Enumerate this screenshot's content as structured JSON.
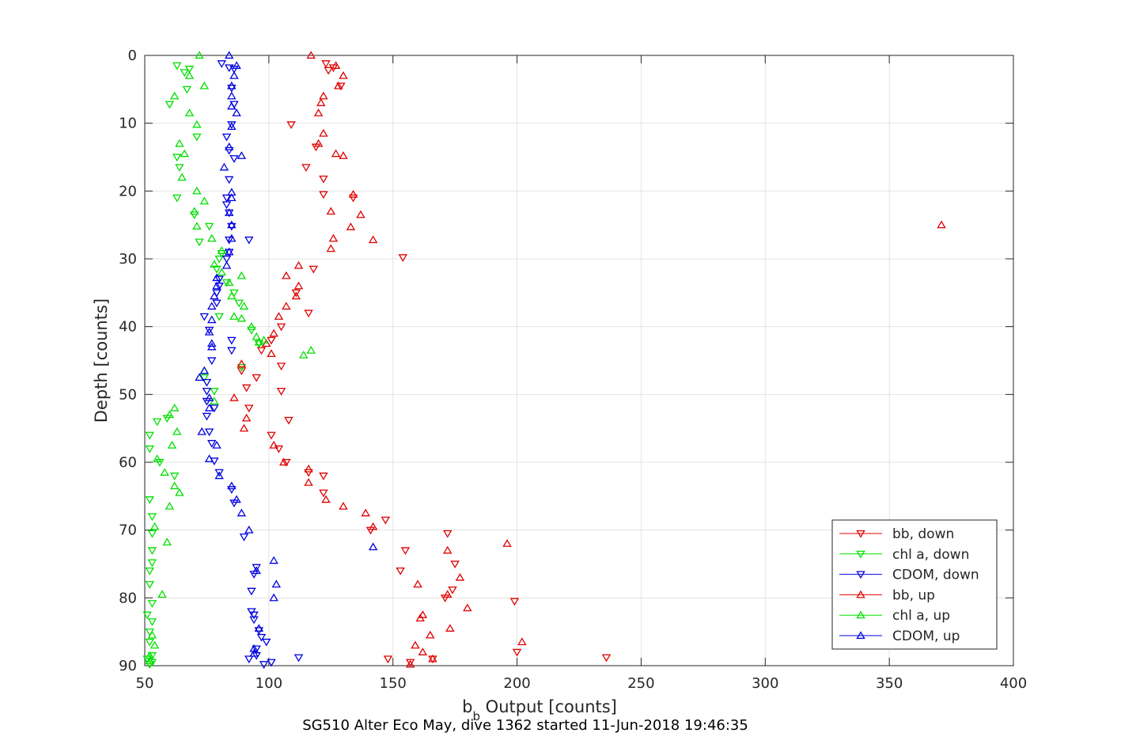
{
  "chart_data": {
    "type": "scatter",
    "xlabel_main": "b",
    "xlabel_sub": "b",
    "xlabel_rest": " Output [counts]",
    "ylabel": "Depth [counts]",
    "footer": "SG510 Alter Eco May, dive 1362 started 11-Jun-2018 19:46:35",
    "xlim": [
      50,
      400
    ],
    "ylim": [
      0,
      90
    ],
    "y_reversed": true,
    "grid": true,
    "legend_position": "bottom-right",
    "x_ticks": [
      50,
      100,
      150,
      200,
      250,
      300,
      350,
      400
    ],
    "y_ticks": [
      0,
      10,
      20,
      30,
      40,
      50,
      60,
      70,
      80,
      90
    ],
    "series": [
      {
        "name": "bb, down",
        "marker": "triangle-down",
        "color": "#e00000",
        "points": [
          [
            123,
            1.2
          ],
          [
            126,
            1.8
          ],
          [
            124,
            2.2
          ],
          [
            129,
            4.5
          ],
          [
            109,
            10.2
          ],
          [
            119,
            13.5
          ],
          [
            115,
            16.5
          ],
          [
            122,
            18.2
          ],
          [
            122,
            20.5
          ],
          [
            134,
            21
          ],
          [
            154,
            29.8
          ],
          [
            118,
            31.5
          ],
          [
            111,
            35
          ],
          [
            116,
            38
          ],
          [
            105,
            40
          ],
          [
            101,
            42
          ],
          [
            97,
            43.5
          ],
          [
            105,
            45.8
          ],
          [
            89,
            46.5
          ],
          [
            95,
            47.5
          ],
          [
            91,
            49
          ],
          [
            105,
            49.5
          ],
          [
            92,
            52
          ],
          [
            108,
            53.8
          ],
          [
            101,
            56
          ],
          [
            104,
            58
          ],
          [
            107,
            60
          ],
          [
            116,
            61.5
          ],
          [
            122,
            62
          ],
          [
            122,
            64.5
          ],
          [
            141,
            70
          ],
          [
            147,
            68.5
          ],
          [
            155,
            73
          ],
          [
            153,
            76
          ],
          [
            172,
            70.5
          ],
          [
            175,
            75
          ],
          [
            174,
            78.8
          ],
          [
            171,
            80
          ],
          [
            199,
            80.5
          ],
          [
            200,
            88
          ],
          [
            157,
            89.5
          ],
          [
            148,
            89
          ],
          [
            166,
            89
          ],
          [
            236,
            88.8
          ]
        ]
      },
      {
        "name": "chl a, down",
        "marker": "triangle-down",
        "color": "#00e000",
        "points": [
          [
            63,
            1.5
          ],
          [
            68,
            2
          ],
          [
            66,
            2.5
          ],
          [
            67,
            5
          ],
          [
            60,
            7.2
          ],
          [
            71,
            12
          ],
          [
            63,
            15
          ],
          [
            64,
            16.5
          ],
          [
            63,
            21
          ],
          [
            70,
            23.5
          ],
          [
            76,
            25.2
          ],
          [
            72,
            27.5
          ],
          [
            81,
            29.2
          ],
          [
            80,
            30
          ],
          [
            79,
            31.5
          ],
          [
            83,
            33.5
          ],
          [
            86,
            35
          ],
          [
            88,
            36.5
          ],
          [
            80,
            38.5
          ],
          [
            93,
            40.5
          ],
          [
            96,
            42.5
          ],
          [
            89,
            46
          ],
          [
            74,
            47.5
          ],
          [
            78,
            49.5
          ],
          [
            59,
            53.5
          ],
          [
            55,
            54
          ],
          [
            52,
            56
          ],
          [
            52,
            58
          ],
          [
            56,
            60
          ],
          [
            62,
            62
          ],
          [
            52,
            65.5
          ],
          [
            53,
            68
          ],
          [
            53,
            70.5
          ],
          [
            53,
            73
          ],
          [
            53,
            74.8
          ],
          [
            52,
            76
          ],
          [
            52,
            78
          ],
          [
            53,
            80.8
          ],
          [
            51,
            82.5
          ],
          [
            53,
            83.5
          ],
          [
            52,
            85
          ],
          [
            52,
            86.5
          ],
          [
            53,
            88.5
          ],
          [
            51,
            89
          ],
          [
            53,
            89.5
          ],
          [
            52,
            89.8
          ]
        ]
      },
      {
        "name": "CDOM, down",
        "marker": "triangle-down",
        "color": "#0000e0",
        "points": [
          [
            81,
            1.2
          ],
          [
            84,
            1.8
          ],
          [
            86,
            2
          ],
          [
            85,
            4.8
          ],
          [
            86,
            7.2
          ],
          [
            85,
            10.2
          ],
          [
            83,
            12
          ],
          [
            84,
            14
          ],
          [
            86,
            15.2
          ],
          [
            84,
            18.3
          ],
          [
            83,
            21
          ],
          [
            83,
            22
          ],
          [
            84,
            23.2
          ],
          [
            85,
            25.2
          ],
          [
            84,
            27.2
          ],
          [
            92,
            27.2
          ],
          [
            84,
            29
          ],
          [
            83,
            30
          ],
          [
            80,
            33
          ],
          [
            80,
            34
          ],
          [
            79,
            35
          ],
          [
            79,
            36.5
          ],
          [
            74,
            38.5
          ],
          [
            76,
            40.5
          ],
          [
            85,
            42
          ],
          [
            85,
            43.5
          ],
          [
            77,
            45
          ],
          [
            75,
            48.2
          ],
          [
            75,
            49.5
          ],
          [
            75,
            51
          ],
          [
            78,
            52
          ],
          [
            75,
            53.2
          ],
          [
            76,
            55.5
          ],
          [
            77,
            57.2
          ],
          [
            78,
            59.8
          ],
          [
            80,
            61.5
          ],
          [
            85,
            64
          ],
          [
            86,
            66
          ],
          [
            90,
            71
          ],
          [
            95,
            75.5
          ],
          [
            94,
            76.5
          ],
          [
            93,
            79
          ],
          [
            93,
            82
          ],
          [
            94,
            82.5
          ],
          [
            94,
            83.2
          ],
          [
            96,
            84.8
          ],
          [
            97,
            85.8
          ],
          [
            99,
            86.5
          ],
          [
            95,
            87.5
          ],
          [
            95,
            88.5
          ],
          [
            92,
            89
          ],
          [
            101,
            89.5
          ],
          [
            98,
            89.8
          ],
          [
            112,
            88.8
          ]
        ]
      },
      {
        "name": "bb, up",
        "marker": "triangle-up",
        "color": "#e00000",
        "points": [
          [
            117,
            0
          ],
          [
            127,
            1.5
          ],
          [
            130,
            3
          ],
          [
            128,
            4.5
          ],
          [
            122,
            6
          ],
          [
            121,
            7
          ],
          [
            120,
            8.5
          ],
          [
            122,
            11.5
          ],
          [
            120,
            13
          ],
          [
            127,
            14.5
          ],
          [
            130,
            14.8
          ],
          [
            134,
            20.5
          ],
          [
            125,
            23
          ],
          [
            137,
            23.5
          ],
          [
            133,
            25.3
          ],
          [
            126,
            27
          ],
          [
            125,
            28.5
          ],
          [
            142,
            27.2
          ],
          [
            371,
            25
          ],
          [
            112,
            31
          ],
          [
            107,
            32.5
          ],
          [
            112,
            34
          ],
          [
            111,
            35.5
          ],
          [
            107,
            37
          ],
          [
            104,
            38.5
          ],
          [
            102,
            41
          ],
          [
            99,
            42.5
          ],
          [
            101,
            44
          ],
          [
            89,
            45.5
          ],
          [
            86,
            50.5
          ],
          [
            91,
            53.5
          ],
          [
            90,
            55
          ],
          [
            102,
            57.5
          ],
          [
            106,
            60
          ],
          [
            116,
            61
          ],
          [
            116,
            63
          ],
          [
            123,
            65.5
          ],
          [
            130,
            66.5
          ],
          [
            139,
            67.5
          ],
          [
            142,
            69.5
          ],
          [
            196,
            72
          ],
          [
            172,
            73
          ],
          [
            177,
            77
          ],
          [
            160,
            78
          ],
          [
            172,
            79.5
          ],
          [
            180,
            81.5
          ],
          [
            162,
            82.5
          ],
          [
            161,
            83
          ],
          [
            173,
            84.5
          ],
          [
            165,
            85.5
          ],
          [
            202,
            86.5
          ],
          [
            159,
            87
          ],
          [
            162,
            88
          ],
          [
            166,
            89
          ],
          [
            157,
            89.8
          ]
        ]
      },
      {
        "name": "chl a, up",
        "marker": "triangle-up",
        "color": "#00e000",
        "points": [
          [
            72,
            0
          ],
          [
            68,
            3
          ],
          [
            74,
            4.5
          ],
          [
            62,
            6
          ],
          [
            68,
            8.5
          ],
          [
            71,
            10.2
          ],
          [
            64,
            13
          ],
          [
            66,
            14.5
          ],
          [
            65,
            18
          ],
          [
            71,
            20
          ],
          [
            74,
            21.5
          ],
          [
            70,
            23
          ],
          [
            71,
            25.2
          ],
          [
            77,
            27
          ],
          [
            81,
            28.8
          ],
          [
            78,
            30.8
          ],
          [
            81,
            32
          ],
          [
            89,
            32.5
          ],
          [
            84,
            33.5
          ],
          [
            85,
            35.5
          ],
          [
            90,
            37
          ],
          [
            86,
            38.5
          ],
          [
            89,
            38.8
          ],
          [
            93,
            40
          ],
          [
            95,
            41.5
          ],
          [
            98,
            42
          ],
          [
            96,
            42.3
          ],
          [
            117,
            43.5
          ],
          [
            114,
            44.2
          ],
          [
            74,
            46.5
          ],
          [
            78,
            51
          ],
          [
            62,
            52
          ],
          [
            60,
            53
          ],
          [
            63,
            55.5
          ],
          [
            61,
            57.5
          ],
          [
            55,
            59.5
          ],
          [
            58,
            61.5
          ],
          [
            62,
            63.5
          ],
          [
            64,
            64.5
          ],
          [
            60,
            66.5
          ],
          [
            54,
            69.5
          ],
          [
            59,
            71.8
          ],
          [
            57,
            79.5
          ],
          [
            53,
            85.5
          ],
          [
            54,
            87
          ],
          [
            52,
            88.5
          ],
          [
            52,
            89.3
          ]
        ]
      },
      {
        "name": "CDOM, up",
        "marker": "triangle-up",
        "color": "#0000e0",
        "points": [
          [
            84,
            0
          ],
          [
            87,
            1.5
          ],
          [
            86,
            3
          ],
          [
            85,
            4.5
          ],
          [
            85,
            6
          ],
          [
            85,
            7.5
          ],
          [
            87,
            8.5
          ],
          [
            85,
            10.5
          ],
          [
            84,
            13.5
          ],
          [
            89,
            14.8
          ],
          [
            82,
            16.5
          ],
          [
            85,
            20.2
          ],
          [
            85,
            21
          ],
          [
            84,
            23.2
          ],
          [
            85,
            25
          ],
          [
            85,
            27
          ],
          [
            84,
            29
          ],
          [
            83,
            31
          ],
          [
            79,
            32.8
          ],
          [
            79,
            34
          ],
          [
            78,
            35.5
          ],
          [
            77,
            37
          ],
          [
            77,
            39
          ],
          [
            76,
            40.8
          ],
          [
            77,
            42.5
          ],
          [
            77,
            43
          ],
          [
            74,
            46.5
          ],
          [
            72,
            47.5
          ],
          [
            76,
            50.5
          ],
          [
            76,
            52
          ],
          [
            73,
            55.5
          ],
          [
            79,
            57.5
          ],
          [
            76,
            59.5
          ],
          [
            80,
            62
          ],
          [
            85,
            63.5
          ],
          [
            87,
            65.5
          ],
          [
            89,
            67.5
          ],
          [
            92,
            70
          ],
          [
            142,
            72.5
          ],
          [
            102,
            74.5
          ],
          [
            95,
            76
          ],
          [
            103,
            78
          ],
          [
            102,
            80
          ],
          [
            96,
            84.5
          ],
          [
            94,
            87.5
          ],
          [
            94,
            88.2
          ]
        ]
      }
    ]
  }
}
